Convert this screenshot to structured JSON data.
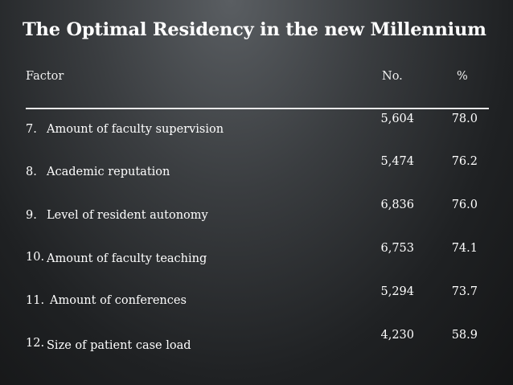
{
  "slide": {
    "title": "The Optimal Residency in the new Millennium",
    "headers": {
      "factor": "Factor",
      "no": "No.",
      "pct": "%"
    },
    "rows": [
      {
        "num": "7.",
        "factor": "Amount of faculty supervision",
        "no": "5,604",
        "pct": "78.0"
      },
      {
        "num": "8.",
        "factor": "Academic reputation",
        "no": "5,474",
        "pct": "76.2"
      },
      {
        "num": "9.",
        "factor": "Level of resident autonomy",
        "no": "6,836",
        "pct": "76.0"
      },
      {
        "num": "10.",
        "factor": "Amount of faculty teaching",
        "no": "6,753",
        "pct": "74.1"
      },
      {
        "num": "11.",
        "factor": "Amount of conferences",
        "no": "5,294",
        "pct": "73.7"
      },
      {
        "num": "12.",
        "factor": "Size of patient case load",
        "no": "4,230",
        "pct": "58.9"
      }
    ]
  }
}
